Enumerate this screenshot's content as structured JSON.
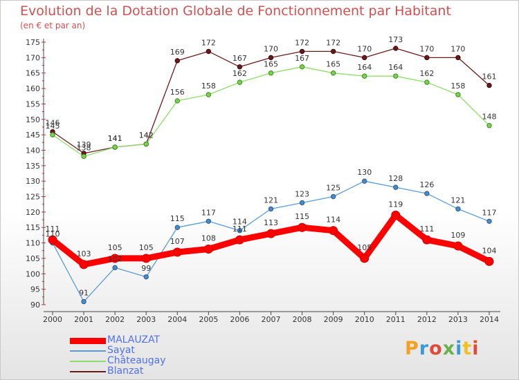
{
  "header": {
    "title": "Evolution de la Dotation Globale de Fonctionnement par Habitant",
    "subtitle": "(en € et par an)"
  },
  "logo": {
    "text": "Proxiti"
  },
  "chart_data": {
    "type": "line",
    "title": "Evolution de la Dotation Globale de Fonctionnement par Habitant",
    "subtitle": "(en € et par an)",
    "x": [
      "2000",
      "2001",
      "2002",
      "2003",
      "2004",
      "2005",
      "2006",
      "2007",
      "2008",
      "2009",
      "2010",
      "2011",
      "2012",
      "2013",
      "2014"
    ],
    "ylim": [
      90,
      175
    ],
    "yticks": [
      90,
      95,
      100,
      105,
      110,
      115,
      120,
      125,
      130,
      135,
      140,
      145,
      150,
      155,
      160,
      165,
      170,
      175
    ],
    "grid": false,
    "legend_position": "bottom-left",
    "series": [
      {
        "name": "MALAUZAT",
        "color": "#ff0000",
        "values": [
          111,
          103,
          105,
          105,
          107,
          108,
          111,
          113,
          115,
          114,
          105,
          119,
          111,
          109,
          104
        ]
      },
      {
        "name": "Sayat",
        "color": "#5b9bd5",
        "values": [
          110,
          91,
          102,
          99,
          115,
          117,
          114,
          121,
          123,
          125,
          130,
          128,
          126,
          121,
          117
        ]
      },
      {
        "name": "Châteaugay",
        "color": "#8fdc6a",
        "values": [
          145,
          138,
          141,
          142,
          156,
          158,
          162,
          165,
          167,
          165,
          164,
          164,
          162,
          158,
          148
        ]
      },
      {
        "name": "Blanzat",
        "color": "#6b1a1a",
        "values": [
          146,
          139,
          141,
          142,
          169,
          172,
          167,
          170,
          172,
          172,
          170,
          173,
          170,
          170,
          161
        ]
      }
    ]
  }
}
